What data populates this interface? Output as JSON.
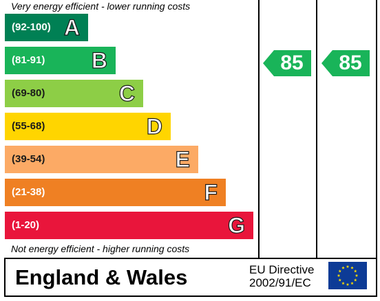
{
  "chart_data": {
    "type": "bar",
    "top_caption": "Very energy efficient - lower running costs",
    "bottom_caption": "Not energy efficient - higher running costs",
    "bands": [
      {
        "range": "(92-100)",
        "letter": "A",
        "color": "#008054"
      },
      {
        "range": "(81-91)",
        "letter": "B",
        "color": "#19b459"
      },
      {
        "range": "(69-80)",
        "letter": "C",
        "color": "#8dce46"
      },
      {
        "range": "(55-68)",
        "letter": "D",
        "color": "#ffd500"
      },
      {
        "range": "(39-54)",
        "letter": "E",
        "color": "#fcaa65"
      },
      {
        "range": "(21-38)",
        "letter": "F",
        "color": "#ef8023"
      },
      {
        "range": "(1-20)",
        "letter": "G",
        "color": "#e9153b"
      }
    ],
    "ratings": [
      {
        "value": 85,
        "band": "B",
        "color": "#19b459"
      },
      {
        "value": 85,
        "band": "B",
        "color": "#19b459"
      }
    ]
  },
  "footer": {
    "region": "England & Wales",
    "directive_line1": "EU Directive",
    "directive_line2": "2002/91/EC"
  },
  "colors": {
    "eu_flag_blue": "#0d3b96",
    "eu_flag_star": "#ffdd00",
    "frame": "#000000"
  }
}
